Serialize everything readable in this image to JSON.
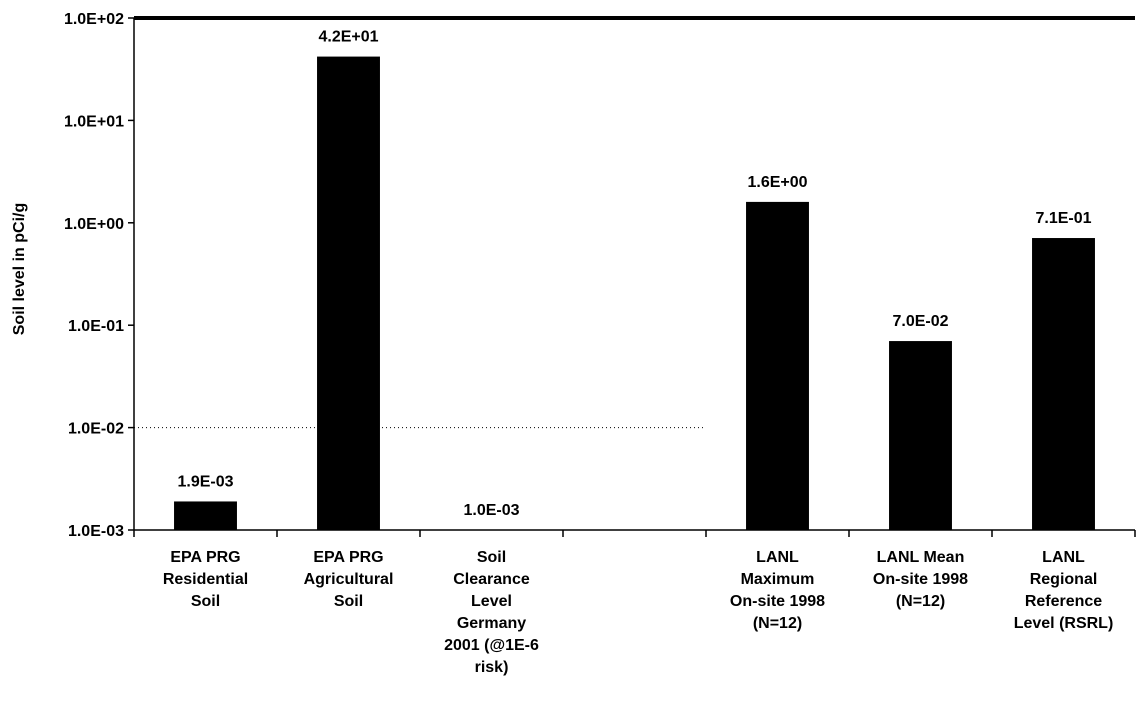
{
  "chart_data": {
    "type": "bar",
    "title": "",
    "xlabel": "",
    "ylabel": "Soil level in pCi/g",
    "yscale": "log",
    "ylim": [
      0.001,
      100
    ],
    "yticks": [
      0.001,
      0.01,
      0.1,
      1,
      10,
      100
    ],
    "ytick_labels": [
      "1.0E-03",
      "1.0E-02",
      "1.0E-01",
      "1.0E+00",
      "1.0E+01",
      "1.0E+02"
    ],
    "grid": "dashed line at 1.0E-02 only",
    "legend": "none",
    "bar_color": "#000000",
    "categories": [
      [
        "EPA PRG",
        "Residential",
        "Soil"
      ],
      [
        "EPA PRG",
        "Agricultural",
        "Soil"
      ],
      [
        "Soil",
        "Clearance",
        "Level",
        "Germany",
        "2001 (@1E-6",
        "risk)"
      ],
      [],
      [
        "LANL",
        "Maximum",
        "On-site 1998",
        "(N=12)"
      ],
      [
        "LANL Mean",
        "On-site 1998",
        "(N=12)"
      ],
      [
        "LANL",
        "Regional",
        "Reference",
        "Level (RSRL)"
      ]
    ],
    "values": [
      0.0019,
      42,
      0.001,
      null,
      1.6,
      0.07,
      0.71
    ],
    "data_labels": [
      "1.9E-03",
      "4.2E+01",
      "1.0E-03",
      "",
      "1.6E+00",
      "7.0E-02",
      "7.1E-01"
    ]
  }
}
